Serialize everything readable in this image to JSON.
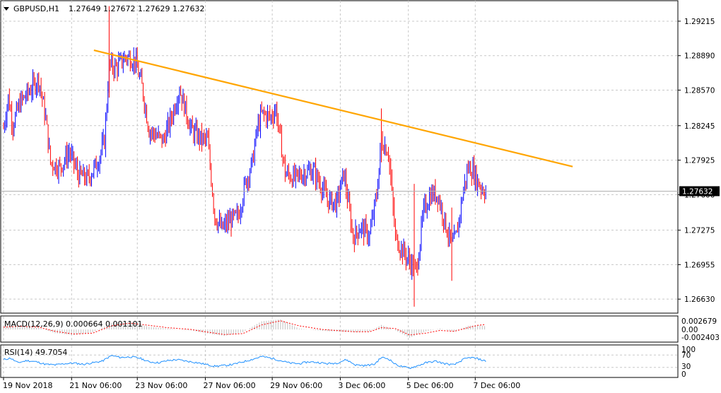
{
  "header": {
    "symbol_label": "GBPUSD,H1",
    "ohlc": "1.27649 1.27672 1.27629 1.27632"
  },
  "macd": {
    "label": "MACD(12,26,9) 0.000664 0.001101",
    "axis_labels": [
      "0.002679",
      "0.00",
      "-0.002403"
    ]
  },
  "rsi": {
    "label": "RSI(14) 49.7054",
    "axis_labels": [
      "100",
      "70",
      "30",
      "0"
    ]
  },
  "colors": {
    "bull_bar": "#0000ff",
    "bear_bar": "#ff0000",
    "trendline": "#ffa500",
    "rsi_line": "#1e90ff",
    "signal_line": "#ff0000",
    "histogram": "#c0c0c0"
  },
  "chart_data": {
    "type": "bar",
    "subtype": "ohlc",
    "timeframe": "H1",
    "x_labels": [
      "19 Nov 2018",
      "21 Nov 06:00",
      "23 Nov 06:00",
      "27 Nov 06:00",
      "29 Nov 06:00",
      "3 Dec 06:00",
      "5 Dec 06:00",
      "7 Dec 06:00"
    ],
    "y_ticks": [
      1.2921,
      1.2889,
      1.2857,
      1.2824,
      1.2792,
      1.276,
      1.2727,
      1.2695,
      1.2663
    ],
    "y_tick_labels": [
      "1.29215",
      "1.28890",
      "1.28570",
      "1.28245",
      "1.27925",
      "1.27600",
      "1.27275",
      "1.26955",
      "1.26630"
    ],
    "ylim": [
      1.265,
      1.294
    ],
    "current_price": 1.27632,
    "current_price_label": "1.27632",
    "grid": true,
    "price_path": [
      [
        0,
        1.2822
      ],
      [
        4,
        1.285
      ],
      [
        8,
        1.2825
      ],
      [
        14,
        1.2845
      ],
      [
        22,
        1.2856
      ],
      [
        30,
        1.2868
      ],
      [
        36,
        1.283
      ],
      [
        40,
        1.279
      ],
      [
        48,
        1.2785
      ],
      [
        56,
        1.28
      ],
      [
        64,
        1.2778
      ],
      [
        72,
        1.2775
      ],
      [
        80,
        1.279
      ],
      [
        86,
        1.281
      ],
      [
        90,
        1.288
      ],
      [
        96,
        1.2878
      ],
      [
        104,
        1.2888
      ],
      [
        112,
        1.2885
      ],
      [
        118,
        1.286
      ],
      [
        124,
        1.282
      ],
      [
        130,
        1.2815
      ],
      [
        136,
        1.281
      ],
      [
        142,
        1.2828
      ],
      [
        150,
        1.2858
      ],
      [
        156,
        1.2835
      ],
      [
        160,
        1.282
      ],
      [
        168,
        1.2812
      ],
      [
        174,
        1.281
      ],
      [
        180,
        1.274
      ],
      [
        186,
        1.2728
      ],
      [
        192,
        1.2735
      ],
      [
        200,
        1.274
      ],
      [
        206,
        1.277
      ],
      [
        212,
        1.279
      ],
      [
        216,
        1.282
      ],
      [
        220,
        1.2835
      ],
      [
        228,
        1.2832
      ],
      [
        232,
        1.284
      ],
      [
        240,
        1.278
      ],
      [
        248,
        1.2775
      ],
      [
        256,
        1.278
      ],
      [
        264,
        1.2782
      ],
      [
        270,
        1.277
      ],
      [
        276,
        1.2755
      ],
      [
        284,
        1.2752
      ],
      [
        290,
        1.278
      ],
      [
        298,
        1.272
      ],
      [
        304,
        1.273
      ],
      [
        312,
        1.2722
      ],
      [
        318,
        1.276
      ],
      [
        322,
        1.281
      ],
      [
        328,
        1.28
      ],
      [
        334,
        1.272
      ],
      [
        340,
        1.2708
      ],
      [
        346,
        1.2698
      ],
      [
        352,
        1.269
      ],
      [
        358,
        1.2745
      ],
      [
        364,
        1.276
      ],
      [
        370,
        1.276
      ],
      [
        376,
        1.2735
      ],
      [
        382,
        1.2712
      ],
      [
        386,
        1.2722
      ],
      [
        392,
        1.2765
      ],
      [
        396,
        1.2785
      ],
      [
        400,
        1.2782
      ],
      [
        404,
        1.2772
      ],
      [
        408,
        1.2766
      ],
      [
        411,
        1.2763
      ]
    ],
    "trendline": {
      "from": [
        77,
        1.2894
      ],
      "to": [
        485,
        1.2786
      ]
    },
    "macd_series": {
      "histogram": [
        [
          0,
          0.0006
        ],
        [
          14,
          0.0008
        ],
        [
          30,
          0.0004
        ],
        [
          44,
          -0.0008
        ],
        [
          60,
          -0.0012
        ],
        [
          76,
          -0.0006
        ],
        [
          92,
          0.0014
        ],
        [
          108,
          0.0016
        ],
        [
          124,
          0.0006
        ],
        [
          140,
          0.0002
        ],
        [
          160,
          -0.0002
        ],
        [
          172,
          -0.0008
        ],
        [
          188,
          -0.0014
        ],
        [
          204,
          -0.0006
        ],
        [
          220,
          0.0018
        ],
        [
          236,
          0.0022
        ],
        [
          252,
          0.0002
        ],
        [
          272,
          -0.0003
        ],
        [
          288,
          -0.0005
        ],
        [
          300,
          -0.0006
        ],
        [
          312,
          -0.0004
        ],
        [
          322,
          0.001
        ],
        [
          334,
          -0.0002
        ],
        [
          346,
          -0.0018
        ],
        [
          360,
          -0.0004
        ],
        [
          372,
          0.0002
        ],
        [
          384,
          -0.0005
        ],
        [
          396,
          0.0008
        ],
        [
          404,
          0.001
        ],
        [
          411,
          0.0007
        ]
      ],
      "signal": [
        [
          0,
          0.0005
        ],
        [
          14,
          0.0007
        ],
        [
          30,
          0.0005
        ],
        [
          44,
          -0.0004
        ],
        [
          60,
          -0.001
        ],
        [
          76,
          -0.0008
        ],
        [
          92,
          0.0008
        ],
        [
          108,
          0.0014
        ],
        [
          124,
          0.0009
        ],
        [
          140,
          0.0004
        ],
        [
          160,
          0.0
        ],
        [
          172,
          -0.0005
        ],
        [
          188,
          -0.0011
        ],
        [
          204,
          -0.0009
        ],
        [
          220,
          0.001
        ],
        [
          236,
          0.0019
        ],
        [
          252,
          0.0008
        ],
        [
          272,
          0.0
        ],
        [
          288,
          -0.0003
        ],
        [
          300,
          -0.0005
        ],
        [
          312,
          -0.0005
        ],
        [
          322,
          0.0004
        ],
        [
          334,
          0.0002
        ],
        [
          346,
          -0.0012
        ],
        [
          360,
          -0.0008
        ],
        [
          372,
          -0.0002
        ],
        [
          384,
          -0.0004
        ],
        [
          396,
          0.0004
        ],
        [
          404,
          0.0009
        ],
        [
          411,
          0.0011
        ]
      ],
      "ylim": [
        -0.0026,
        0.0028
      ]
    },
    "rsi_series": {
      "values": [
        [
          0,
          55
        ],
        [
          6,
          60
        ],
        [
          12,
          45
        ],
        [
          20,
          52
        ],
        [
          28,
          48
        ],
        [
          36,
          40
        ],
        [
          44,
          38
        ],
        [
          52,
          42
        ],
        [
          60,
          44
        ],
        [
          68,
          40
        ],
        [
          76,
          45
        ],
        [
          84,
          50
        ],
        [
          92,
          68
        ],
        [
          100,
          62
        ],
        [
          108,
          64
        ],
        [
          116,
          60
        ],
        [
          124,
          48
        ],
        [
          132,
          45
        ],
        [
          140,
          52
        ],
        [
          148,
          55
        ],
        [
          156,
          50
        ],
        [
          164,
          46
        ],
        [
          172,
          40
        ],
        [
          180,
          34
        ],
        [
          188,
          36
        ],
        [
          196,
          40
        ],
        [
          204,
          48
        ],
        [
          212,
          56
        ],
        [
          220,
          65
        ],
        [
          228,
          60
        ],
        [
          236,
          52
        ],
        [
          244,
          44
        ],
        [
          252,
          42
        ],
        [
          260,
          48
        ],
        [
          268,
          46
        ],
        [
          276,
          42
        ],
        [
          284,
          44
        ],
        [
          292,
          55
        ],
        [
          300,
          38
        ],
        [
          308,
          36
        ],
        [
          316,
          40
        ],
        [
          322,
          62
        ],
        [
          328,
          58
        ],
        [
          334,
          40
        ],
        [
          340,
          32
        ],
        [
          346,
          28
        ],
        [
          352,
          34
        ],
        [
          360,
          45
        ],
        [
          368,
          50
        ],
        [
          376,
          42
        ],
        [
          384,
          38
        ],
        [
          392,
          56
        ],
        [
          398,
          62
        ],
        [
          404,
          58
        ],
        [
          411,
          50
        ]
      ],
      "ylim": [
        0,
        100
      ]
    }
  }
}
